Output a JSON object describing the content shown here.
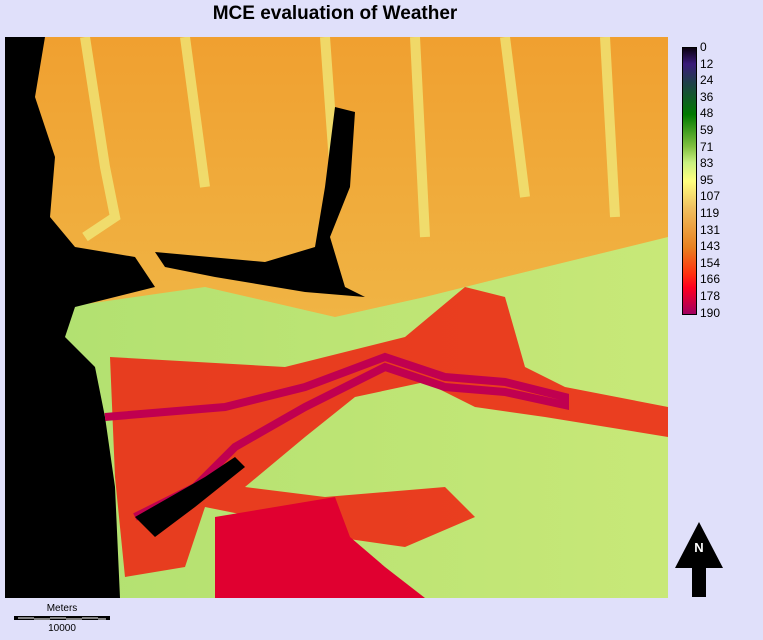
{
  "title": "MCE evaluation of Weather",
  "legend": {
    "labels": [
      "0",
      "12",
      "24",
      "36",
      "48",
      "59",
      "71",
      "83",
      "95",
      "107",
      "119",
      "131",
      "143",
      "154",
      "166",
      "178",
      "190"
    ],
    "colors": [
      "#0a0010",
      "#3a1a7a",
      "#1f3f4a",
      "#007a00",
      "#80c040",
      "#ffff80",
      "#f0c060",
      "#e88020",
      "#ff0020",
      "#a00060"
    ]
  },
  "scale_bar": {
    "unit": "Meters",
    "value": "10000"
  },
  "north_arrow": {
    "label": "N"
  }
}
